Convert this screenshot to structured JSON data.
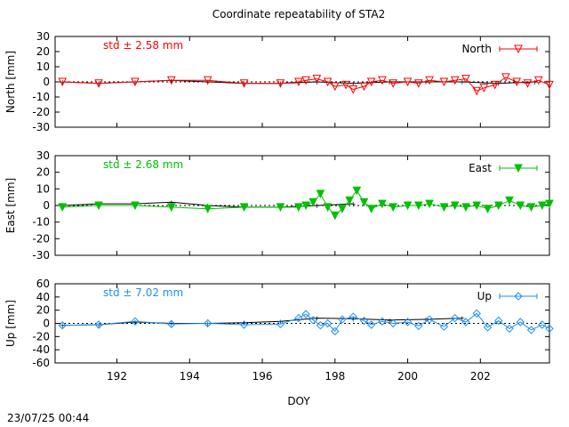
{
  "title": "Coordinate repeatability of STA2",
  "timestamp": "23/07/25 00:44",
  "chart_data": [
    {
      "type": "line",
      "component": "north",
      "ylabel": "North [mm]",
      "ylim": [
        -30,
        30
      ],
      "yticks": [
        -30,
        -20,
        -10,
        0,
        10,
        20,
        30
      ],
      "std_label": "std ± 2.58 mm",
      "legend_label": "North",
      "legend_position": "top-right",
      "color": "#ff0000",
      "marker": "triangle-down-open",
      "x": [
        190.5,
        191.5,
        192.5,
        193.5,
        194.5,
        195.5,
        196.5,
        197.0,
        197.2,
        197.5,
        197.8,
        198.0,
        198.3,
        198.5,
        198.8,
        199.0,
        199.3,
        199.6,
        200.0,
        200.3,
        200.6,
        201.0,
        201.3,
        201.6,
        201.9,
        202.1,
        202.4,
        202.7,
        203.0,
        203.3,
        203.6,
        203.9
      ],
      "values": [
        0,
        -1,
        0,
        1,
        1,
        -1,
        -1,
        0,
        1,
        2,
        0,
        -3,
        -2,
        -5,
        -3,
        0,
        1,
        -1,
        0,
        -1,
        1,
        0,
        1,
        2,
        -6,
        -4,
        -2,
        3,
        0,
        -1,
        1,
        -2
      ],
      "reference_x": [
        190.5,
        191.5,
        192.5,
        193.5,
        194.5,
        195.5,
        196.5,
        197.5,
        198.5,
        199.5,
        200.5,
        201.5,
        202.5,
        203.5
      ],
      "reference_values": [
        0,
        -1,
        0,
        1,
        0,
        -1,
        -1,
        0,
        -1,
        0,
        0,
        0,
        -1,
        0
      ]
    },
    {
      "type": "line",
      "component": "east",
      "ylabel": "East [mm]",
      "ylim": [
        -30,
        30
      ],
      "yticks": [
        -30,
        -20,
        -10,
        0,
        10,
        20,
        30
      ],
      "std_label": "std ± 2.68 mm",
      "legend_label": "East",
      "legend_position": "top-right",
      "color": "#00c000",
      "marker": "triangle-down-filled",
      "x": [
        190.5,
        191.5,
        192.5,
        193.5,
        194.5,
        195.5,
        196.5,
        197.0,
        197.2,
        197.4,
        197.6,
        197.8,
        198.0,
        198.2,
        198.4,
        198.6,
        198.8,
        199.0,
        199.3,
        199.6,
        200.0,
        200.3,
        200.6,
        201.0,
        201.3,
        201.6,
        201.9,
        202.2,
        202.5,
        202.8,
        203.1,
        203.4,
        203.7,
        203.9
      ],
      "values": [
        -1,
        0,
        0,
        -1,
        -2,
        -1,
        -1,
        -1,
        0,
        2,
        7,
        -1,
        -6,
        -2,
        3,
        9,
        2,
        -2,
        1,
        -1,
        0,
        0,
        1,
        -1,
        0,
        -1,
        0,
        -2,
        0,
        3,
        0,
        -1,
        0,
        1
      ],
      "reference_x": [
        190.5,
        191.5,
        192.5,
        193.5,
        194.5,
        195.5,
        196.5,
        197.5,
        198.5
      ],
      "reference_values": [
        0,
        1,
        1,
        2,
        0,
        -1,
        -1,
        0,
        1
      ]
    },
    {
      "type": "line",
      "component": "up",
      "ylabel": "Up [mm]",
      "ylim": [
        -60,
        60
      ],
      "yticks": [
        -60,
        -40,
        -20,
        0,
        20,
        40,
        60
      ],
      "std_label": "std ± 7.02 mm",
      "legend_label": "Up",
      "legend_position": "top-right",
      "color": "#1f8ff0",
      "marker": "diamond-open",
      "x": [
        190.5,
        191.5,
        192.5,
        193.5,
        194.5,
        195.5,
        196.5,
        197.0,
        197.2,
        197.4,
        197.6,
        197.8,
        198.0,
        198.2,
        198.5,
        198.8,
        199.0,
        199.3,
        199.6,
        200.0,
        200.3,
        200.6,
        201.0,
        201.3,
        201.6,
        201.9,
        202.2,
        202.5,
        202.8,
        203.1,
        203.4,
        203.7,
        203.9
      ],
      "values": [
        -3,
        -2,
        3,
        -1,
        0,
        -2,
        -1,
        8,
        14,
        5,
        -3,
        0,
        -12,
        6,
        10,
        4,
        -2,
        3,
        0,
        2,
        -4,
        6,
        -5,
        8,
        2,
        15,
        -6,
        4,
        -8,
        2,
        -10,
        -2,
        -8
      ],
      "reference_x": [
        190.5,
        191.5,
        192.5,
        193.5,
        194.5,
        195.5,
        196.5,
        197.5,
        198.5,
        199.5,
        200.5,
        201.5
      ],
      "reference_values": [
        -3,
        -2,
        2,
        0,
        0,
        1,
        3,
        8,
        7,
        5,
        6,
        8
      ]
    }
  ],
  "x_axis": {
    "label": "DOY",
    "xlim": [
      190.3,
      203.9
    ],
    "ticks": [
      192,
      194,
      196,
      198,
      200,
      202
    ],
    "tick_labels": [
      "192",
      "194",
      "196",
      "198",
      "200",
      "202"
    ]
  }
}
